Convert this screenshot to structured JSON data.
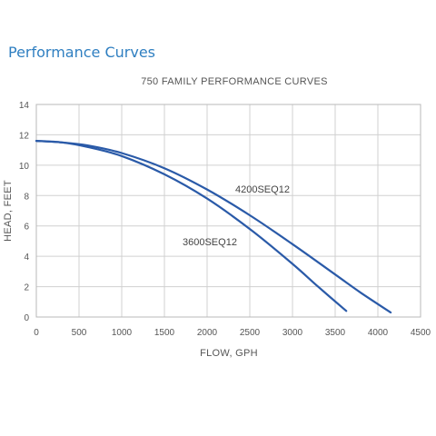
{
  "page": {
    "heading": "Performance Curves",
    "heading_color": "#2f7fc1"
  },
  "chart_data": {
    "type": "line",
    "title": "750 FAMILY PERFORMANCE CURVES",
    "xlabel": "FLOW, GPH",
    "ylabel": "HEAD, FEET",
    "xlim": [
      0,
      4500
    ],
    "ylim": [
      0,
      14
    ],
    "x_ticks": [
      0,
      500,
      1000,
      1500,
      2000,
      2500,
      3000,
      3500,
      4000,
      4500
    ],
    "y_ticks": [
      0,
      2,
      4,
      6,
      8,
      10,
      12,
      14
    ],
    "grid": true,
    "line_color": "#2a5aa8",
    "grid_color": "#d0d0d0",
    "series": [
      {
        "name": "4200SEQ12",
        "x": [
          0,
          300,
          600,
          1000,
          1500,
          2000,
          2500,
          3000,
          3500,
          3800,
          4150
        ],
        "y": [
          11.6,
          11.5,
          11.3,
          10.8,
          9.8,
          8.4,
          6.7,
          4.8,
          2.8,
          1.6,
          0.3
        ]
      },
      {
        "name": "3600SEQ12",
        "x": [
          0,
          300,
          600,
          1000,
          1500,
          2000,
          2500,
          3000,
          3300,
          3630
        ],
        "y": [
          11.6,
          11.5,
          11.2,
          10.6,
          9.4,
          7.8,
          5.8,
          3.5,
          2.0,
          0.4
        ]
      }
    ]
  }
}
